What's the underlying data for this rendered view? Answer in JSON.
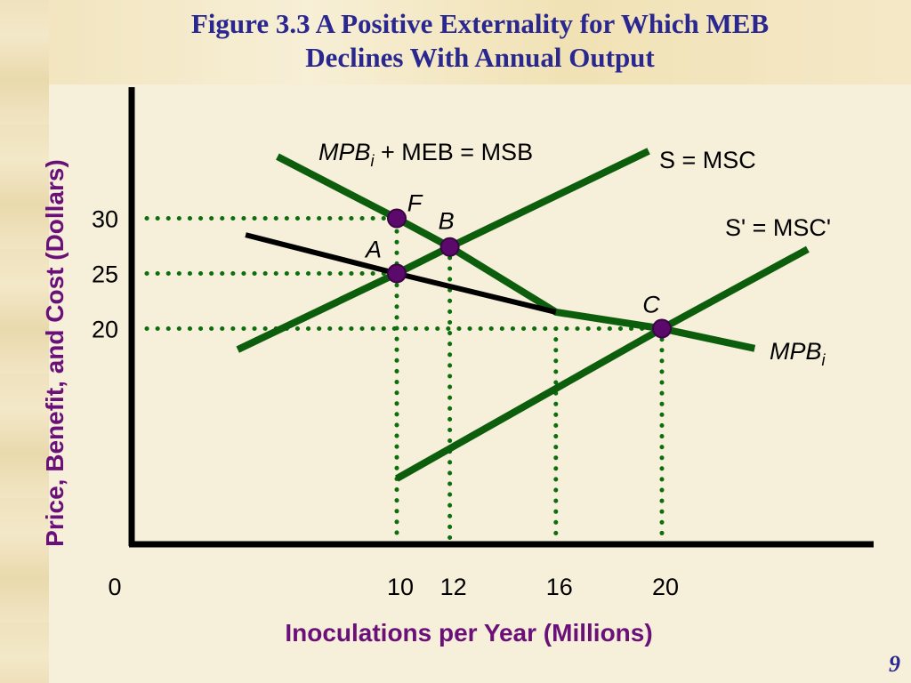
{
  "slide": {
    "title_line1": "Figure 3.3 A Positive Externality  for Which MEB",
    "title_line2": "Declines With Annual Output",
    "page_number": "9"
  },
  "colors": {
    "title": "#2a2890",
    "axis_label": "#6b1078",
    "curve_green": "#0c5e0c",
    "mpb_line": "#000000",
    "point_purple": "#5b0a6b",
    "guide_dots": "#0c6e0c"
  },
  "chart_data": {
    "type": "line",
    "title": "Figure 3.3 A Positive Externality  for Which MEB Declines With Annual Output",
    "xlabel": "Inoculations per Year (Millions)",
    "ylabel": "Price,  Benefit, and Cost (Dollars)",
    "x_ticks": [
      {
        "value": 0,
        "label": "0"
      },
      {
        "value": 10,
        "label": "10"
      },
      {
        "value": 12,
        "label": "12"
      },
      {
        "value": 16,
        "label": "16"
      },
      {
        "value": 20,
        "label": "20"
      }
    ],
    "y_ticks": [
      {
        "value": 30,
        "label": "30"
      },
      {
        "value": 25,
        "label": "25"
      },
      {
        "value": 20,
        "label": "20"
      }
    ],
    "series": [
      {
        "id": "msb",
        "label_main": "MPB",
        "label_sub": "i",
        "label_rest": " + MEB = MSB",
        "color": "#0c5e0c",
        "points": [
          [
            5.5,
            35.6
          ],
          [
            10,
            30
          ],
          [
            12,
            27.4
          ],
          [
            16,
            21.5
          ],
          [
            20,
            20
          ],
          [
            23.5,
            18.2
          ]
        ]
      },
      {
        "id": "msc",
        "label_main": "S = MSC",
        "color": "#0c5e0c",
        "points": [
          [
            4,
            18.1
          ],
          [
            10,
            25
          ],
          [
            12,
            27.4
          ],
          [
            19.5,
            36.1
          ]
        ]
      },
      {
        "id": "msc_prime",
        "label_main": "S' = MSC'",
        "color": "#0c5e0c",
        "points": [
          [
            10,
            6.4
          ],
          [
            20,
            20
          ],
          [
            25.5,
            27.2
          ]
        ]
      },
      {
        "id": "mpb",
        "label_main": "MPB",
        "label_sub": "i",
        "color": "#000000",
        "points": [
          [
            4.3,
            28.5
          ],
          [
            10,
            25
          ],
          [
            16,
            21.5
          ]
        ]
      }
    ],
    "points": [
      {
        "label": "F",
        "x": 10,
        "y": 30
      },
      {
        "label": "A",
        "x": 10,
        "y": 25
      },
      {
        "label": "B",
        "x": 12,
        "y": 27.4
      },
      {
        "label": "C",
        "x": 20,
        "y": 20
      }
    ],
    "guides": [
      {
        "axis": "h",
        "y": 30,
        "to_x": 10
      },
      {
        "axis": "h",
        "y": 25,
        "to_x": 10
      },
      {
        "axis": "h",
        "y": 20,
        "to_x": 20
      },
      {
        "axis": "v",
        "x": 10
      },
      {
        "axis": "v",
        "x": 12,
        "from_y": 27.4
      },
      {
        "axis": "v",
        "x": 16,
        "from_y": 20
      },
      {
        "axis": "v",
        "x": 20,
        "from_y": 20
      }
    ],
    "grid": false,
    "legend": "none"
  }
}
